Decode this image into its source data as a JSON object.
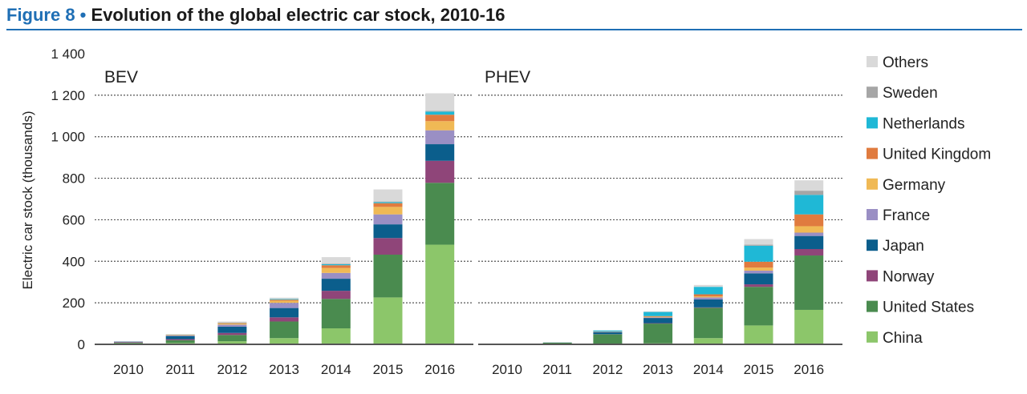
{
  "title": {
    "figure": "Figure 8 •",
    "text": "Evolution of the global electric car stock, 2010-16"
  },
  "chart_data": {
    "type": "bar",
    "stacked": true,
    "ylabel": "Electric car stock (thousands)",
    "ylim": [
      0,
      1400
    ],
    "yticks": [
      0,
      200,
      400,
      600,
      800,
      1000,
      1200,
      1400
    ],
    "ytick_labels": [
      "0",
      "200",
      "400",
      "600",
      "800",
      "1 000",
      "1 200",
      "1 400"
    ],
    "categories": [
      "2010",
      "2011",
      "2012",
      "2013",
      "2014",
      "2015",
      "2016"
    ],
    "grid": true,
    "legend_position": "right",
    "series_names": [
      "China",
      "United States",
      "Norway",
      "Japan",
      "France",
      "Germany",
      "United Kingdom",
      "Netherlands",
      "Sweden",
      "Others"
    ],
    "colors": [
      "#8cc66a",
      "#4a8b4f",
      "#8f4579",
      "#0b5e8c",
      "#9a8fc4",
      "#f0b955",
      "#e07b3f",
      "#1fb8d6",
      "#a6a6a6",
      "#d9d9d9"
    ],
    "panels": [
      {
        "name": "BEV",
        "values": [
          [
            5,
            3,
            3,
            2,
            0,
            0,
            0,
            0,
            0,
            2
          ],
          [
            7,
            13,
            5,
            15,
            3,
            2,
            1,
            1,
            0,
            3
          ],
          [
            15,
            30,
            10,
            30,
            10,
            5,
            3,
            1,
            1,
            5
          ],
          [
            30,
            80,
            20,
            45,
            25,
            10,
            5,
            3,
            1,
            6
          ],
          [
            77,
            142,
            39,
            58,
            28,
            24,
            13,
            5,
            3,
            31
          ],
          [
            226,
            206,
            80,
            66,
            48,
            36,
            18,
            5,
            3,
            58
          ],
          [
            480,
            298,
            106,
            80,
            67,
            44,
            31,
            15,
            4,
            84
          ]
        ]
      },
      {
        "name": "PHEV",
        "values": [
          [
            0,
            1,
            0,
            0,
            0,
            0,
            0,
            0,
            0,
            0
          ],
          [
            0,
            8,
            0,
            1,
            0,
            0,
            0,
            0,
            0,
            1
          ],
          [
            3,
            45,
            1,
            10,
            1,
            1,
            1,
            5,
            0,
            1
          ],
          [
            5,
            95,
            2,
            25,
            3,
            3,
            3,
            20,
            1,
            2
          ],
          [
            30,
            146,
            2,
            38,
            10,
            5,
            10,
            36,
            0,
            9
          ],
          [
            91,
            186,
            12,
            53,
            13,
            15,
            28,
            77,
            5,
            27
          ],
          [
            166,
            262,
            31,
            63,
            16,
            31,
            57,
            94,
            20,
            50
          ]
        ]
      }
    ]
  }
}
